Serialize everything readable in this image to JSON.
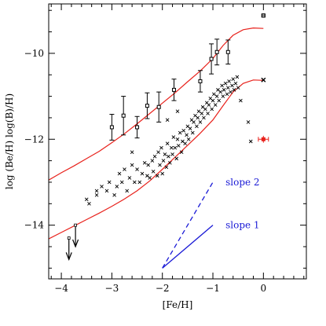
{
  "chart_data": {
    "type": "scatter",
    "xlabel": "[Fe/H]",
    "ylabel": "log (Be/H)  log(B)/H)",
    "xlim": [
      -4.25,
      0.85
    ],
    "ylim": [
      -15.25,
      -8.85
    ],
    "x_ticks": [
      -4,
      -3,
      -2,
      -1,
      0
    ],
    "y_ticks": [
      -14,
      -12,
      -10
    ],
    "x_tick_labels": [
      "−4",
      "−3",
      "−2",
      "−1",
      "0"
    ],
    "y_tick_labels": [
      "−14",
      "−12",
      "−10"
    ],
    "colors": {
      "axes": "#000000",
      "model": "#e8221c",
      "slope": "#1a1ad6",
      "sun": "#e8221c"
    },
    "boron_points": [
      {
        "x": -3.0,
        "y": -11.72,
        "err": 0.3
      },
      {
        "x": -2.77,
        "y": -11.45,
        "err": 0.45
      },
      {
        "x": -2.5,
        "y": -11.72,
        "err": 0.25
      },
      {
        "x": -2.3,
        "y": -11.22,
        "err": 0.3
      },
      {
        "x": -2.07,
        "y": -11.25,
        "err": 0.35
      },
      {
        "x": -1.77,
        "y": -10.85,
        "err": 0.25
      },
      {
        "x": -1.25,
        "y": -10.65,
        "err": 0.25
      },
      {
        "x": -1.03,
        "y": -10.13,
        "err": 0.35
      },
      {
        "x": -0.92,
        "y": -9.97,
        "err": 0.3
      },
      {
        "x": -0.7,
        "y": -9.97,
        "err": 0.28
      }
    ],
    "beryllium_points": [
      [
        -3.5,
        -13.4
      ],
      [
        -3.45,
        -13.5
      ],
      [
        -3.3,
        -13.3
      ],
      [
        -3.2,
        -13.1
      ],
      [
        -3.1,
        -13.2
      ],
      [
        -3.05,
        -13.0
      ],
      [
        -2.95,
        -13.3
      ],
      [
        -2.9,
        -13.1
      ],
      [
        -2.85,
        -12.8
      ],
      [
        -2.8,
        -13.0
      ],
      [
        -2.75,
        -12.7
      ],
      [
        -2.7,
        -13.2
      ],
      [
        -2.65,
        -12.9
      ],
      [
        -2.6,
        -12.6
      ],
      [
        -2.55,
        -13.0
      ],
      [
        -2.5,
        -12.7
      ],
      [
        -2.45,
        -13.0
      ],
      [
        -2.4,
        -12.8
      ],
      [
        -2.35,
        -12.55
      ],
      [
        -2.3,
        -12.85
      ],
      [
        -2.28,
        -12.6
      ],
      [
        -2.25,
        -12.9
      ],
      [
        -2.2,
        -12.5
      ],
      [
        -2.18,
        -12.75
      ],
      [
        -2.15,
        -12.4
      ],
      [
        -2.1,
        -12.85
      ],
      [
        -2.08,
        -12.3
      ],
      [
        -2.05,
        -12.6
      ],
      [
        -2.02,
        -12.2
      ],
      [
        -2.0,
        -12.8
      ],
      [
        -1.98,
        -12.5
      ],
      [
        -1.95,
        -12.35
      ],
      [
        -1.92,
        -12.65
      ],
      [
        -1.9,
        -12.1
      ],
      [
        -1.88,
        -12.4
      ],
      [
        -1.85,
        -12.55
      ],
      [
        -1.82,
        -12.2
      ],
      [
        -1.8,
        -12.35
      ],
      [
        -1.78,
        -11.95
      ],
      [
        -1.75,
        -12.2
      ],
      [
        -1.72,
        -12.45
      ],
      [
        -1.7,
        -12.0
      ],
      [
        -1.68,
        -12.15
      ],
      [
        -1.65,
        -11.85
      ],
      [
        -1.62,
        -12.3
      ],
      [
        -1.6,
        -12.05
      ],
      [
        -1.58,
        -11.8
      ],
      [
        -1.55,
        -12.1
      ],
      [
        -1.52,
        -11.9
      ],
      [
        -1.5,
        -11.7
      ],
      [
        -1.48,
        -12.0
      ],
      [
        -1.45,
        -11.75
      ],
      [
        -1.42,
        -11.55
      ],
      [
        -1.4,
        -11.85
      ],
      [
        -1.38,
        -11.6
      ],
      [
        -1.35,
        -11.45
      ],
      [
        -1.32,
        -11.7
      ],
      [
        -1.3,
        -11.5
      ],
      [
        -1.28,
        -11.35
      ],
      [
        -1.25,
        -11.6
      ],
      [
        -1.22,
        -11.4
      ],
      [
        -1.2,
        -11.25
      ],
      [
        -1.18,
        -11.5
      ],
      [
        -1.15,
        -11.3
      ],
      [
        -1.12,
        -11.15
      ],
      [
        -1.1,
        -11.4
      ],
      [
        -1.08,
        -11.2
      ],
      [
        -1.05,
        -11.05
      ],
      [
        -1.02,
        -11.3
      ],
      [
        -1.0,
        -11.1
      ],
      [
        -0.98,
        -10.95
      ],
      [
        -0.95,
        -11.2
      ],
      [
        -0.92,
        -11.0
      ],
      [
        -0.9,
        -10.85
      ],
      [
        -0.88,
        -11.1
      ],
      [
        -0.85,
        -10.9
      ],
      [
        -0.82,
        -10.75
      ],
      [
        -0.8,
        -11.0
      ],
      [
        -0.78,
        -10.85
      ],
      [
        -0.75,
        -10.7
      ],
      [
        -0.72,
        -10.95
      ],
      [
        -0.7,
        -10.8
      ],
      [
        -0.68,
        -10.65
      ],
      [
        -0.65,
        -10.9
      ],
      [
        -0.62,
        -10.75
      ],
      [
        -0.6,
        -10.6
      ],
      [
        -0.58,
        -10.85
      ],
      [
        -0.55,
        -10.7
      ],
      [
        -0.52,
        -10.55
      ],
      [
        -0.5,
        -10.8
      ],
      [
        -0.45,
        -11.1
      ],
      [
        -0.3,
        -11.6
      ],
      [
        -0.25,
        -12.05
      ],
      [
        -1.7,
        -11.35
      ],
      [
        -1.9,
        -11.55
      ],
      [
        -2.6,
        -12.3
      ],
      [
        -3.3,
        -13.2
      ]
    ],
    "upper_limits": [
      {
        "x": -3.85,
        "y": -14.3
      },
      {
        "x": -3.72,
        "y": -14.0
      }
    ],
    "solar_boron": {
      "x": 0,
      "y": -9.12
    },
    "solar_beryllium": {
      "x": 0,
      "y": -10.62
    },
    "sun_meteoritic": {
      "x": 0,
      "y": -12.0,
      "xerr": 0.1,
      "yerr": 0.08
    },
    "model_curves": {
      "boron": [
        [
          -4.25,
          -12.95
        ],
        [
          -4.0,
          -12.78
        ],
        [
          -3.75,
          -12.62
        ],
        [
          -3.5,
          -12.45
        ],
        [
          -3.25,
          -12.28
        ],
        [
          -3.0,
          -12.08
        ],
        [
          -2.75,
          -11.87
        ],
        [
          -2.5,
          -11.64
        ],
        [
          -2.25,
          -11.4
        ],
        [
          -2.0,
          -11.16
        ],
        [
          -1.75,
          -10.92
        ],
        [
          -1.5,
          -10.66
        ],
        [
          -1.25,
          -10.41
        ],
        [
          -1.0,
          -10.12
        ],
        [
          -0.8,
          -9.82
        ],
        [
          -0.6,
          -9.58
        ],
        [
          -0.4,
          -9.45
        ],
        [
          -0.2,
          -9.41
        ],
        [
          0.0,
          -9.42
        ]
      ],
      "beryllium": [
        [
          -4.25,
          -14.32
        ],
        [
          -4.0,
          -14.17
        ],
        [
          -3.75,
          -14.02
        ],
        [
          -3.5,
          -13.87
        ],
        [
          -3.25,
          -13.72
        ],
        [
          -3.0,
          -13.56
        ],
        [
          -2.75,
          -13.39
        ],
        [
          -2.5,
          -13.2
        ],
        [
          -2.25,
          -12.97
        ],
        [
          -2.0,
          -12.7
        ],
        [
          -1.75,
          -12.42
        ],
        [
          -1.5,
          -12.14
        ],
        [
          -1.25,
          -11.86
        ],
        [
          -1.0,
          -11.55
        ],
        [
          -0.8,
          -11.22
        ],
        [
          -0.6,
          -10.9
        ],
        [
          -0.4,
          -10.7
        ],
        [
          -0.2,
          -10.62
        ],
        [
          0.0,
          -10.63
        ]
      ]
    },
    "slope_lines": [
      {
        "label": "slope 2",
        "x": [
          -2.0,
          -1.0
        ],
        "y": [
          -15.0,
          -13.0
        ],
        "style": "dashed",
        "label_at": [
          -0.75,
          -13.0
        ]
      },
      {
        "label": "slope 1",
        "x": [
          -2.0,
          -1.0
        ],
        "y": [
          -15.0,
          -14.0
        ],
        "style": "solid",
        "label_at": [
          -0.75,
          -14.0
        ]
      }
    ]
  }
}
